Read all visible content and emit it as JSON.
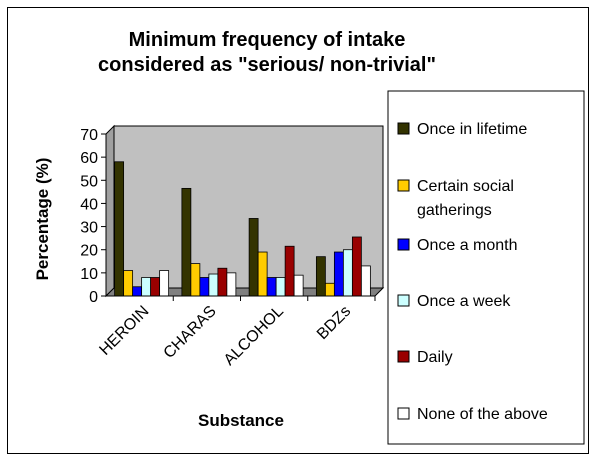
{
  "chart_data": {
    "type": "bar",
    "title": [
      "Minimum frequency of intake",
      "considered as \"serious/ non-trivial\""
    ],
    "xlabel": "Substance",
    "ylabel": "Percentage (%)",
    "ylim": [
      0,
      70
    ],
    "yticks": [
      0,
      10,
      20,
      30,
      40,
      50,
      60,
      70
    ],
    "grid": false,
    "legend_position": "right",
    "plot_background": "#c0c0c0",
    "categories": [
      "HEROIN",
      "CHARAS",
      "ALCOHOL",
      "BDZs"
    ],
    "series": [
      {
        "name": "Once in lifetime",
        "color": "#333300",
        "values": [
          58,
          46.5,
          33.5,
          17
        ]
      },
      {
        "name": "Certain social gatherings",
        "color": "#ffcc00",
        "values": [
          11,
          14,
          19,
          5.5
        ]
      },
      {
        "name": "Once a month",
        "color": "#0000ff",
        "values": [
          4,
          8,
          8,
          19
        ]
      },
      {
        "name": "Once a week",
        "color": "#ccffff",
        "values": [
          8,
          9.5,
          8,
          20
        ]
      },
      {
        "name": "Daily",
        "color": "#990000",
        "values": [
          8,
          12,
          21.5,
          25.5
        ]
      },
      {
        "name": "None of the above",
        "color": "#ffffff",
        "values": [
          11,
          10,
          9,
          13
        ]
      }
    ]
  }
}
